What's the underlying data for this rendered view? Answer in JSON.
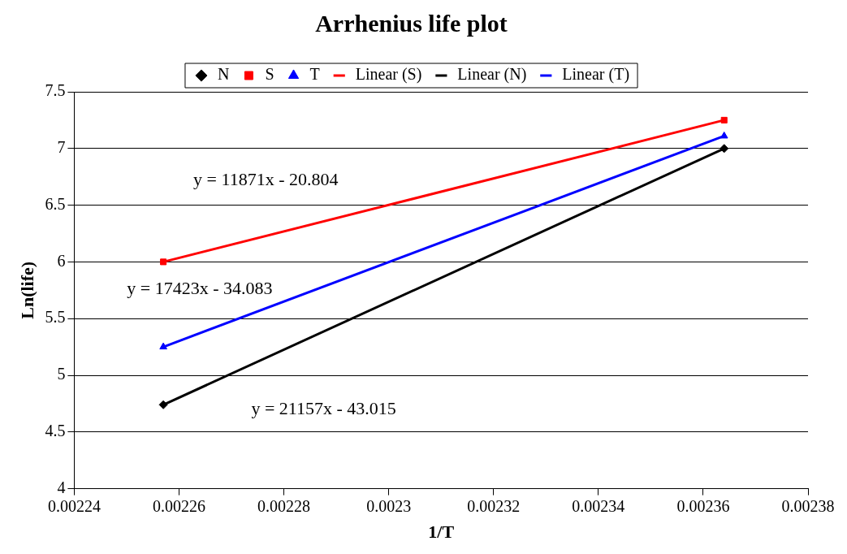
{
  "chart_data": {
    "type": "scatter",
    "title": "Arrhenius life plot",
    "xlabel": "1/T",
    "ylabel": "Ln(life)",
    "xlim": [
      0.00224,
      0.00238
    ],
    "xticks": [
      0.00224,
      0.00226,
      0.00228,
      0.0023,
      0.00232,
      0.00234,
      0.00236,
      0.00238
    ],
    "ylim": [
      4,
      7.5
    ],
    "yticks": [
      4,
      4.5,
      5,
      5.5,
      6,
      6.5,
      7,
      7.5
    ],
    "grid": "y",
    "legend": "top",
    "x": [
      0.002257,
      0.002364
    ],
    "series": [
      {
        "name": "N",
        "color": "#000000",
        "marker": "diamond",
        "values": [
          4.74,
          7.0
        ]
      },
      {
        "name": "S",
        "color": "#ff0000",
        "marker": "square",
        "values": [
          6.0,
          7.25
        ]
      },
      {
        "name": "T",
        "color": "#0000ff",
        "marker": "triangle",
        "values": [
          5.25,
          7.11
        ]
      },
      {
        "name": "Linear (S)",
        "type": "line",
        "color": "#ff0000",
        "line_style": "solid",
        "marker": "none",
        "values": [
          6.0,
          7.25
        ]
      },
      {
        "name": "Linear (N)",
        "type": "line",
        "color": "#000000",
        "line_style": "solid",
        "marker": "none",
        "values": [
          4.74,
          7.0
        ]
      },
      {
        "name": "Linear (T)",
        "type": "line",
        "color": "#0000ff",
        "line_style": "solid",
        "marker": "none",
        "values": [
          5.25,
          7.11
        ]
      }
    ],
    "annotations": [
      "y = 11871x - 20.804",
      "y = 17423x - 34.083",
      "y = 21157x - 43.015"
    ]
  }
}
